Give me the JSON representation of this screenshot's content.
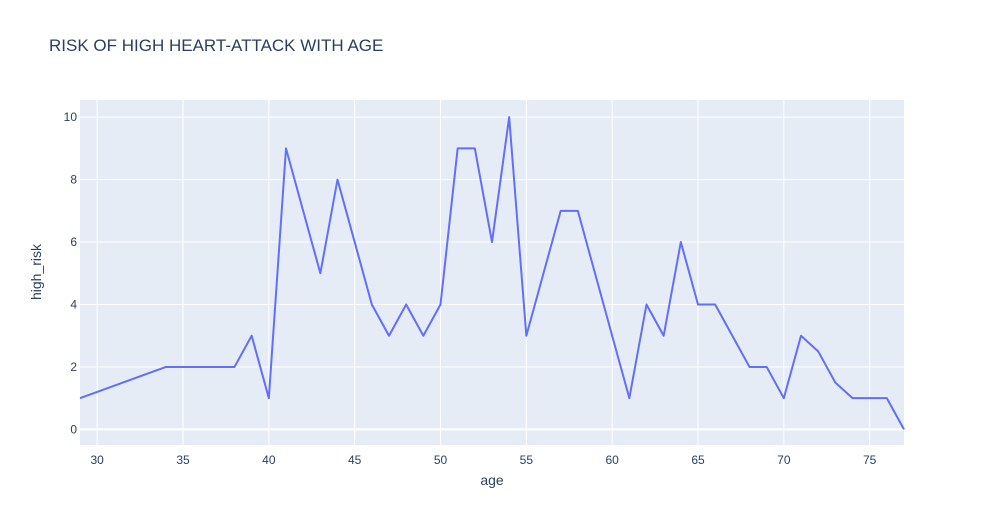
{
  "chart_data": {
    "type": "line",
    "title": "RISK OF HIGH HEART-ATTACK WITH AGE",
    "xlabel": "age",
    "ylabel": "high_risk",
    "xlim": [
      29,
      77
    ],
    "ylim": [
      -0.5,
      10.55
    ],
    "x_ticks": [
      30,
      35,
      40,
      45,
      50,
      55,
      60,
      65,
      70,
      75
    ],
    "y_ticks": [
      0,
      2,
      4,
      6,
      8,
      10
    ],
    "grid": true,
    "series": [
      {
        "color": "#636efa",
        "points": [
          [
            29,
            1
          ],
          [
            34,
            2
          ],
          [
            35,
            2
          ],
          [
            37,
            2
          ],
          [
            38,
            2
          ],
          [
            39,
            3
          ],
          [
            40,
            1
          ],
          [
            41,
            9
          ],
          [
            42,
            7
          ],
          [
            43,
            5
          ],
          [
            44,
            8
          ],
          [
            45,
            6
          ],
          [
            46,
            4
          ],
          [
            47,
            3
          ],
          [
            48,
            4
          ],
          [
            49,
            3
          ],
          [
            50,
            4
          ],
          [
            51,
            9
          ],
          [
            52,
            9
          ],
          [
            53,
            6
          ],
          [
            54,
            10
          ],
          [
            55,
            3
          ],
          [
            56,
            5
          ],
          [
            57,
            7
          ],
          [
            58,
            7
          ],
          [
            59,
            5
          ],
          [
            60,
            3
          ],
          [
            61,
            1
          ],
          [
            62,
            4
          ],
          [
            63,
            3
          ],
          [
            64,
            6
          ],
          [
            65,
            4
          ],
          [
            66,
            4
          ],
          [
            67,
            3
          ],
          [
            68,
            2
          ],
          [
            69,
            2
          ],
          [
            70,
            1
          ],
          [
            71,
            3
          ],
          [
            72,
            2.5
          ],
          [
            73,
            1.5
          ],
          [
            74,
            1
          ],
          [
            75,
            1
          ],
          [
            76,
            1
          ],
          [
            77,
            0
          ]
        ]
      }
    ]
  },
  "colors": {
    "plot_background": "#e5ecf6",
    "grid": "#ffffff",
    "text": "#2a3f5f",
    "line": "#636efa"
  }
}
